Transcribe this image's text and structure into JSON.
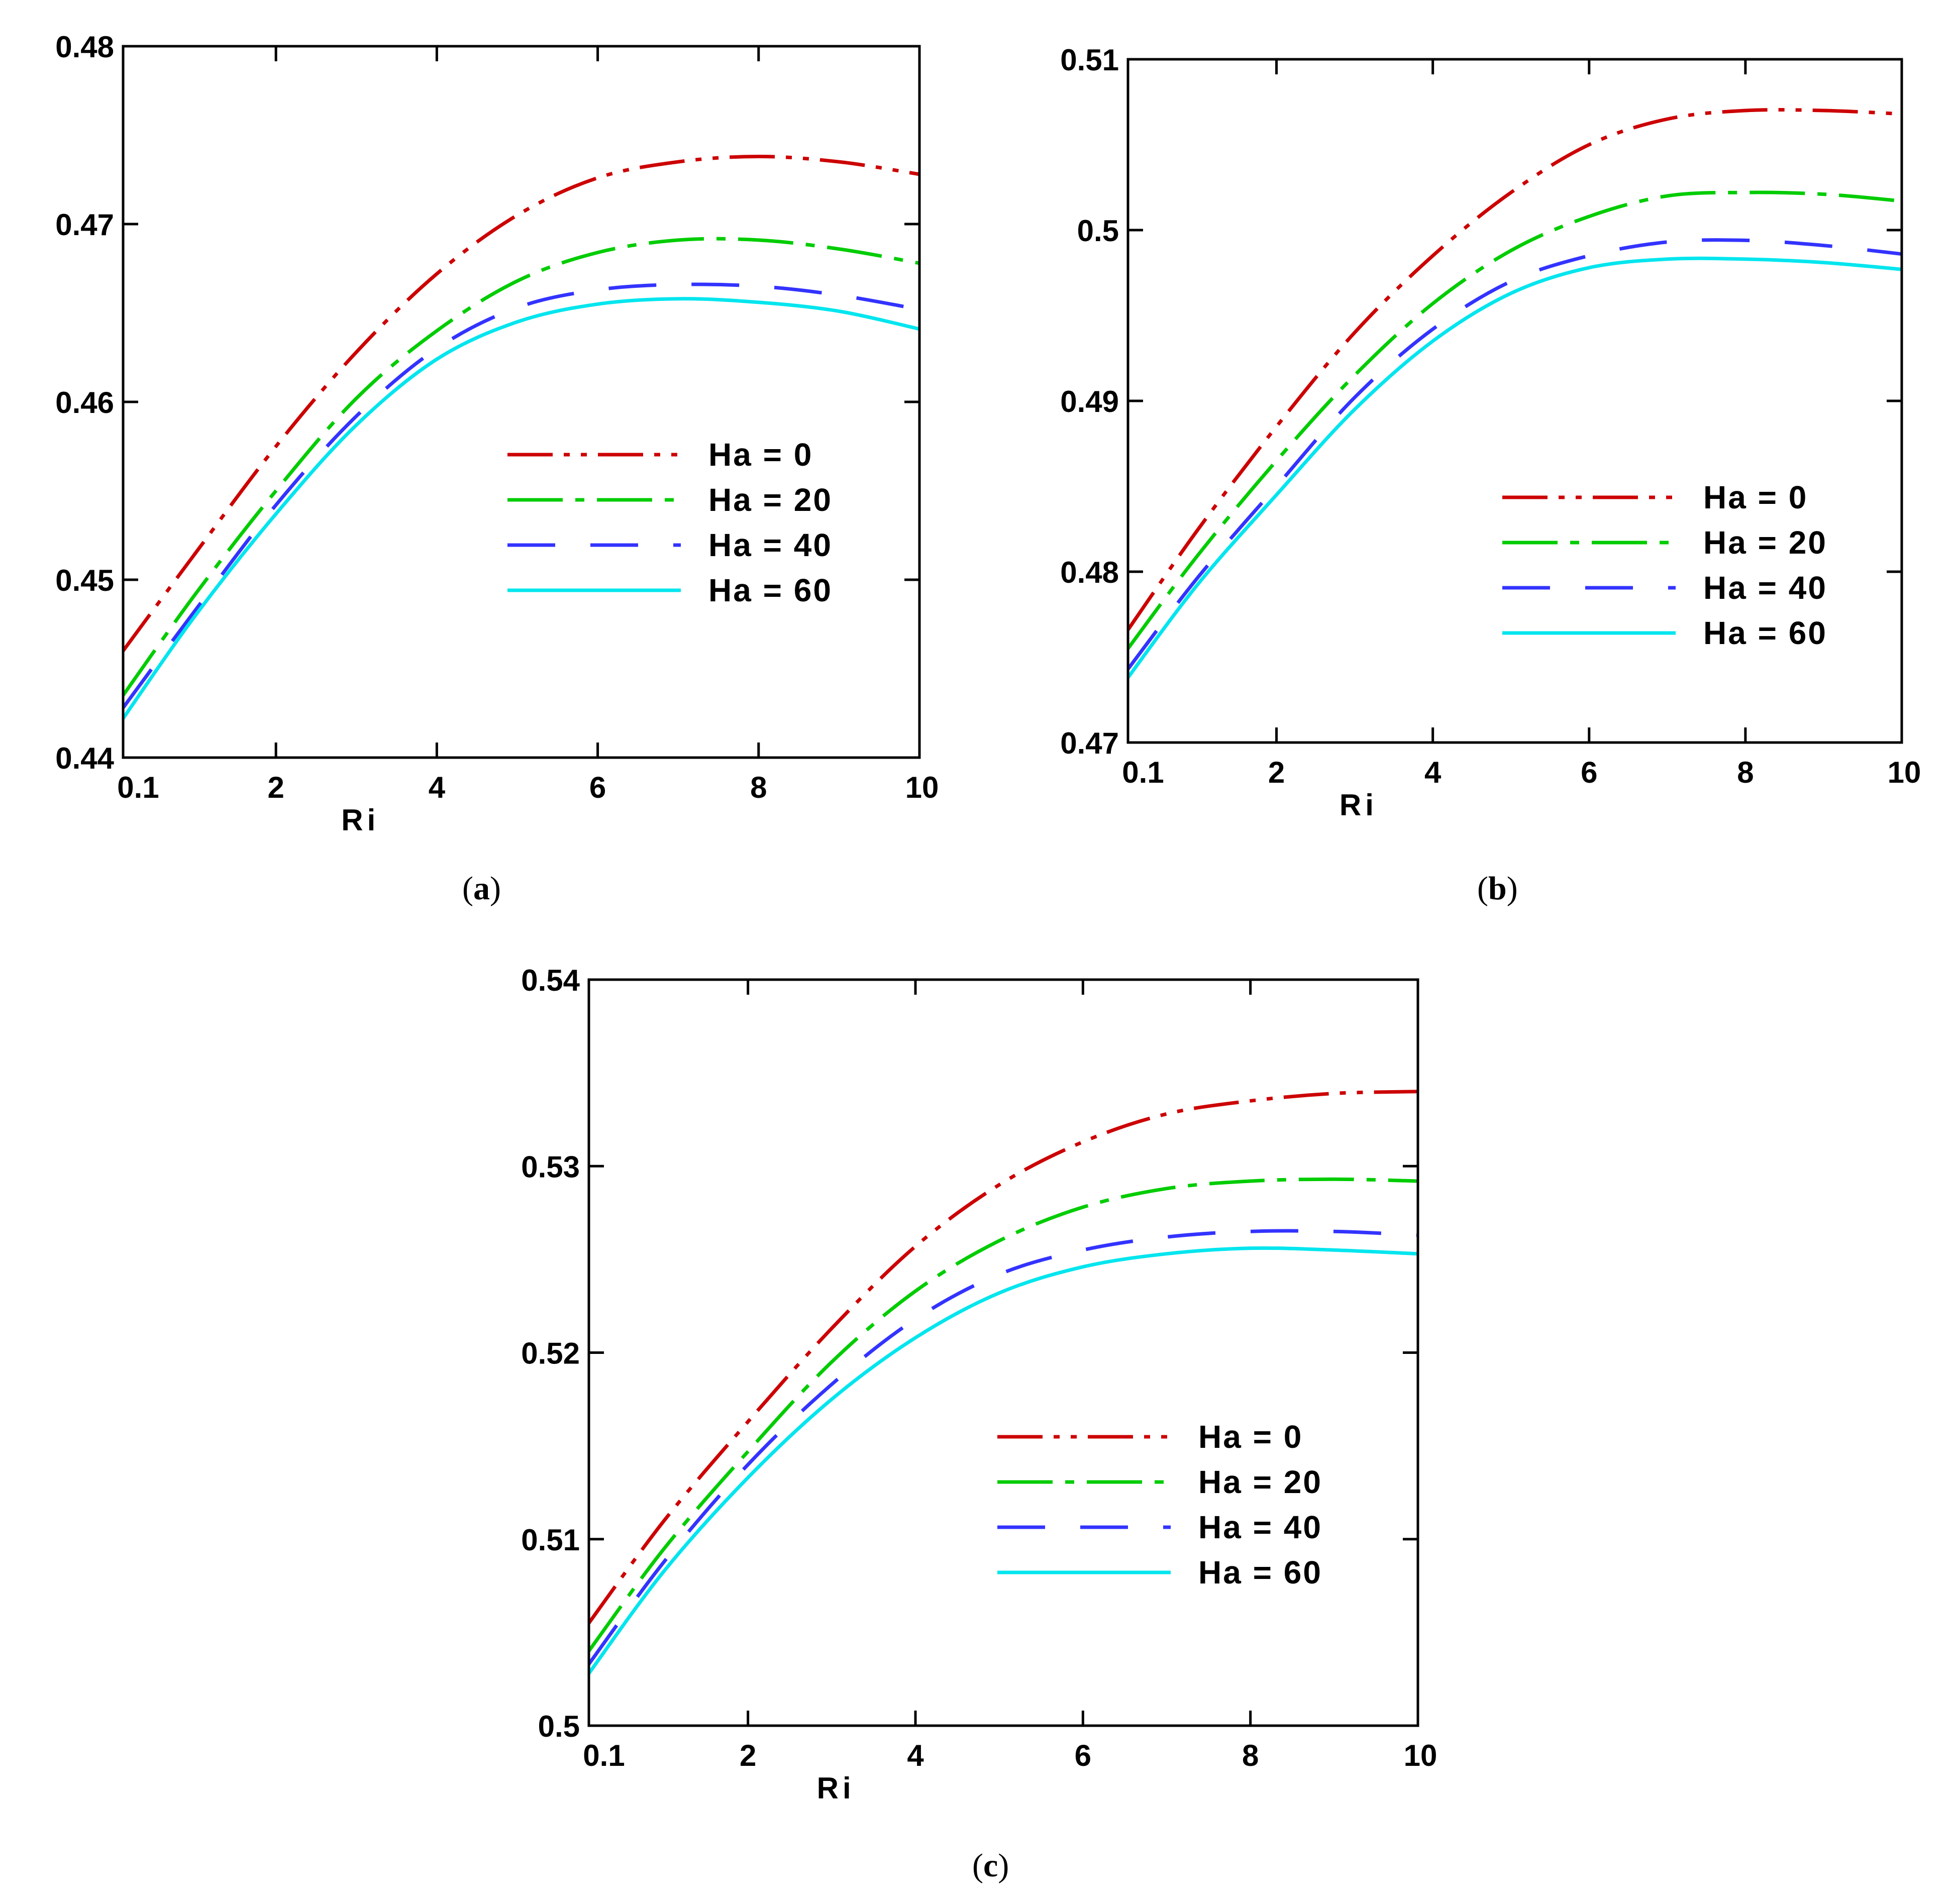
{
  "figure": {
    "series_styles": [
      {
        "name": "Ha = 0",
        "color": "#cc0000",
        "dash": "dashdotdot"
      },
      {
        "name": "Ha = 20",
        "color": "#00cc00",
        "dash": "dashdot"
      },
      {
        "name": "Ha = 40",
        "color": "#3333ff",
        "dash": "longdash"
      },
      {
        "name": "Ha = 60",
        "color": "#00e5ee",
        "dash": "solid"
      }
    ]
  },
  "chart_data": [
    {
      "type": "line",
      "caption": "(a)",
      "caption_letter": "a",
      "title": "",
      "xlabel": "Ri",
      "ylabel": "",
      "xlim": [
        0.1,
        10
      ],
      "ylim": [
        0.44,
        0.48
      ],
      "x_ticks": [
        0.1,
        2,
        4,
        6,
        8,
        10
      ],
      "x_tick_labels": [
        "0.1",
        "2",
        "4",
        "6",
        "8",
        "10"
      ],
      "y_ticks": [
        0.44,
        0.45,
        0.46,
        0.47,
        0.48
      ],
      "y_tick_labels": [
        "0.44",
        "0.45",
        "0.46",
        "0.47",
        "0.48"
      ],
      "legend_position": "center-right",
      "x": [
        0.1,
        1,
        2,
        3,
        4,
        5,
        6,
        7,
        8,
        9,
        10
      ],
      "series": [
        {
          "name": "Ha = 0",
          "values": [
            0.446,
            0.4515,
            0.4575,
            0.4628,
            0.4672,
            0.4705,
            0.4726,
            0.4735,
            0.4738,
            0.4735,
            0.4728
          ]
        },
        {
          "name": "Ha = 20",
          "values": [
            0.4435,
            0.4492,
            0.455,
            0.4602,
            0.464,
            0.4668,
            0.4684,
            0.4691,
            0.4691,
            0.4686,
            0.4678
          ]
        },
        {
          "name": "Ha = 40",
          "values": [
            0.4428,
            0.4483,
            0.4542,
            0.4592,
            0.463,
            0.4653,
            0.4663,
            0.4666,
            0.4665,
            0.466,
            0.4652
          ]
        },
        {
          "name": "Ha = 60",
          "values": [
            0.4422,
            0.448,
            0.4537,
            0.4587,
            0.4624,
            0.4645,
            0.4655,
            0.4658,
            0.4656,
            0.4651,
            0.4641
          ]
        }
      ]
    },
    {
      "type": "line",
      "caption": "(b)",
      "caption_letter": "b",
      "title": "",
      "xlabel": "Ri",
      "ylabel": "",
      "xlim": [
        0.1,
        10
      ],
      "ylim": [
        0.47,
        0.51
      ],
      "x_ticks": [
        0.1,
        2,
        4,
        6,
        8,
        10
      ],
      "x_tick_labels": [
        "0.1",
        "2",
        "4",
        "6",
        "8",
        "10"
      ],
      "y_ticks": [
        0.47,
        0.48,
        0.49,
        0.5,
        0.51
      ],
      "y_tick_labels": [
        "0.47",
        "0.48",
        "0.49",
        "0.5",
        "0.51"
      ],
      "legend_position": "center-right",
      "x": [
        0.1,
        1,
        2,
        3,
        4,
        5,
        6,
        7,
        8,
        9,
        10
      ],
      "series": [
        {
          "name": "Ha = 0",
          "values": [
            0.4766,
            0.4825,
            0.4885,
            0.494,
            0.4985,
            0.5022,
            0.505,
            0.5065,
            0.507,
            0.507,
            0.5068
          ]
        },
        {
          "name": "Ha = 20",
          "values": [
            0.4755,
            0.481,
            0.4865,
            0.4915,
            0.4957,
            0.4988,
            0.5008,
            0.502,
            0.5022,
            0.5021,
            0.5017
          ]
        },
        {
          "name": "Ha = 40",
          "values": [
            0.4743,
            0.4797,
            0.485,
            0.4902,
            0.4942,
            0.497,
            0.4985,
            0.4993,
            0.4994,
            0.4991,
            0.4986
          ]
        },
        {
          "name": "Ha = 60",
          "values": [
            0.4738,
            0.4793,
            0.4845,
            0.4895,
            0.4935,
            0.4963,
            0.4978,
            0.4983,
            0.4983,
            0.4981,
            0.4977
          ]
        }
      ]
    },
    {
      "type": "line",
      "caption": "(c)",
      "caption_letter": "c",
      "title": "",
      "xlabel": "Ri",
      "ylabel": "",
      "xlim": [
        0.1,
        10
      ],
      "ylim": [
        0.5,
        0.54
      ],
      "x_ticks": [
        0.1,
        2,
        4,
        6,
        8,
        10
      ],
      "x_tick_labels": [
        "0.1",
        "2",
        "4",
        "6",
        "8",
        "10"
      ],
      "y_ticks": [
        0.5,
        0.51,
        0.52,
        0.53,
        0.54
      ],
      "y_tick_labels": [
        "0.5",
        "0.51",
        "0.52",
        "0.53",
        "0.54"
      ],
      "legend_position": "center-right",
      "x": [
        0.1,
        1,
        2,
        3,
        4,
        5,
        6,
        7,
        8,
        9,
        10
      ],
      "series": [
        {
          "name": "Ha = 0",
          "values": [
            0.5055,
            0.511,
            0.5163,
            0.5213,
            0.5257,
            0.529,
            0.5313,
            0.5328,
            0.5335,
            0.5339,
            0.534
          ]
        },
        {
          "name": "Ha = 20",
          "values": [
            0.504,
            0.5095,
            0.5147,
            0.5195,
            0.5233,
            0.526,
            0.5278,
            0.5288,
            0.5292,
            0.5293,
            0.5292
          ]
        },
        {
          "name": "Ha = 40",
          "values": [
            0.5033,
            0.5088,
            0.514,
            0.5183,
            0.5218,
            0.5242,
            0.5255,
            0.5262,
            0.5265,
            0.5265,
            0.5263
          ]
        },
        {
          "name": "Ha = 60",
          "values": [
            0.5028,
            0.5083,
            0.5133,
            0.5175,
            0.5208,
            0.5232,
            0.5246,
            0.5253,
            0.5256,
            0.5255,
            0.5253
          ]
        }
      ]
    }
  ]
}
